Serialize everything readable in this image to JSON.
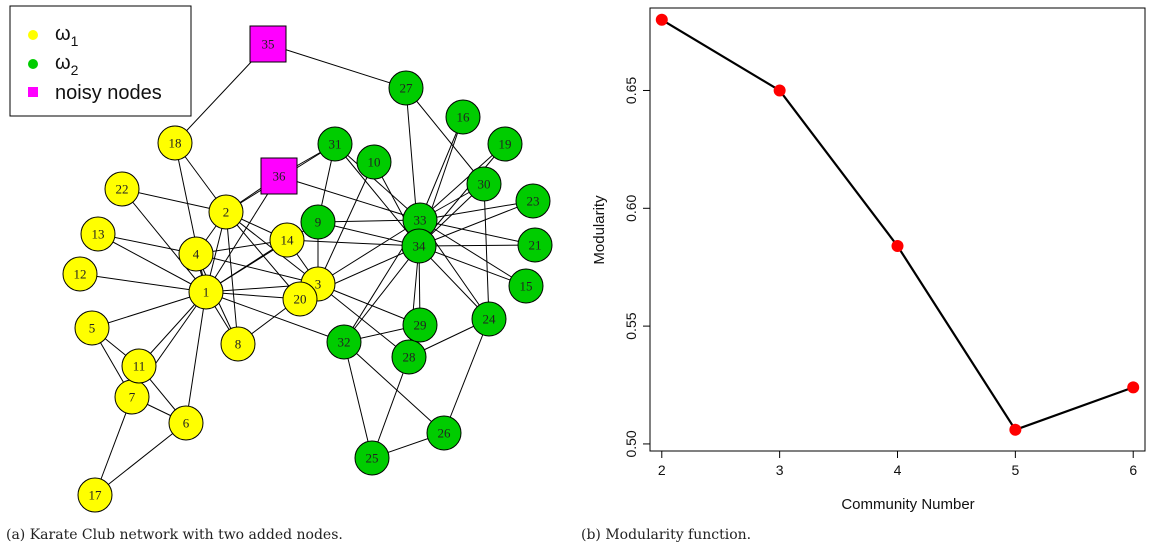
{
  "chart_data": [
    {
      "type": "network",
      "caption": "(a) Karate Club network with two added nodes.",
      "legend": [
        {
          "symbol": "circle",
          "color": "#ffff00",
          "label_main": "ω",
          "label_sub": "1"
        },
        {
          "symbol": "circle",
          "color": "#00cc00",
          "label_main": "ω",
          "label_sub": "2"
        },
        {
          "symbol": "square",
          "color": "#ff00ff",
          "label_main": "noisy nodes",
          "label_sub": ""
        }
      ],
      "groups": {
        "omega1": {
          "color": "#ffff00",
          "nodes": [
            1,
            2,
            3,
            4,
            5,
            6,
            7,
            8,
            11,
            12,
            13,
            14,
            17,
            18,
            20,
            22
          ]
        },
        "omega2": {
          "color": "#00cc00",
          "nodes": [
            9,
            10,
            15,
            16,
            19,
            21,
            23,
            24,
            25,
            26,
            27,
            28,
            29,
            30,
            31,
            32,
            33,
            34
          ]
        },
        "noisy": {
          "color": "#ff00ff",
          "nodes": [
            35,
            36
          ]
        }
      },
      "edges": [
        [
          1,
          2
        ],
        [
          1,
          3
        ],
        [
          1,
          4
        ],
        [
          1,
          5
        ],
        [
          1,
          6
        ],
        [
          1,
          7
        ],
        [
          1,
          8
        ],
        [
          1,
          9
        ],
        [
          1,
          11
        ],
        [
          1,
          12
        ],
        [
          1,
          13
        ],
        [
          1,
          14
        ],
        [
          1,
          18
        ],
        [
          1,
          20
        ],
        [
          1,
          22
        ],
        [
          1,
          32
        ],
        [
          2,
          3
        ],
        [
          2,
          4
        ],
        [
          2,
          8
        ],
        [
          2,
          14
        ],
        [
          2,
          18
        ],
        [
          2,
          20
        ],
        [
          2,
          22
        ],
        [
          2,
          31
        ],
        [
          3,
          4
        ],
        [
          3,
          8
        ],
        [
          3,
          9
        ],
        [
          3,
          10
        ],
        [
          3,
          14
        ],
        [
          3,
          28
        ],
        [
          3,
          29
        ],
        [
          3,
          33
        ],
        [
          4,
          8
        ],
        [
          4,
          13
        ],
        [
          4,
          14
        ],
        [
          5,
          7
        ],
        [
          5,
          11
        ],
        [
          6,
          7
        ],
        [
          6,
          11
        ],
        [
          6,
          17
        ],
        [
          7,
          17
        ],
        [
          9,
          31
        ],
        [
          9,
          33
        ],
        [
          9,
          34
        ],
        [
          10,
          34
        ],
        [
          14,
          34
        ],
        [
          15,
          33
        ],
        [
          15,
          34
        ],
        [
          16,
          33
        ],
        [
          16,
          34
        ],
        [
          19,
          33
        ],
        [
          19,
          34
        ],
        [
          20,
          34
        ],
        [
          21,
          33
        ],
        [
          21,
          34
        ],
        [
          23,
          33
        ],
        [
          23,
          34
        ],
        [
          24,
          26
        ],
        [
          24,
          28
        ],
        [
          24,
          30
        ],
        [
          24,
          33
        ],
        [
          24,
          34
        ],
        [
          25,
          26
        ],
        [
          25,
          28
        ],
        [
          25,
          32
        ],
        [
          26,
          32
        ],
        [
          27,
          30
        ],
        [
          27,
          34
        ],
        [
          28,
          34
        ],
        [
          29,
          32
        ],
        [
          29,
          34
        ],
        [
          30,
          33
        ],
        [
          30,
          34
        ],
        [
          31,
          33
        ],
        [
          31,
          34
        ],
        [
          32,
          33
        ],
        [
          32,
          34
        ],
        [
          33,
          34
        ],
        [
          35,
          18
        ],
        [
          35,
          27
        ],
        [
          36,
          1
        ],
        [
          36,
          2
        ],
        [
          36,
          31
        ],
        [
          36,
          33
        ]
      ]
    },
    {
      "type": "line",
      "caption": "(b) Modularity function.",
      "xlabel": "Community Number",
      "ylabel": "Modularity",
      "x": [
        2,
        3,
        4,
        5,
        6
      ],
      "values": [
        0.68,
        0.65,
        0.584,
        0.506,
        0.524
      ],
      "xlim": [
        1.9,
        6.1
      ],
      "ylim": [
        0.497,
        0.685
      ],
      "xticks": [
        "2",
        "3",
        "4",
        "5",
        "6"
      ],
      "yticks": [
        "0.50",
        "0.55",
        "0.60",
        "0.65"
      ],
      "ytick_values": [
        0.5,
        0.55,
        0.6,
        0.65
      ],
      "line_color": "#000000",
      "marker_color": "#ff0000"
    }
  ]
}
